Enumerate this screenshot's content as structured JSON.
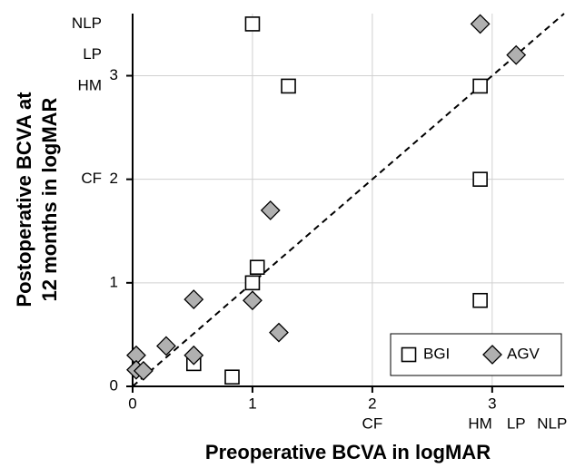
{
  "chart_data": {
    "type": "scatter",
    "x_label": "Preoperative BCVA in logMAR",
    "y_label": [
      "Postoperative BCVA at",
      "12 months in logMAR"
    ],
    "xlim": [
      0,
      3.6
    ],
    "ylim": [
      0,
      3.6
    ],
    "xticks": [
      0,
      1,
      2,
      3
    ],
    "yticks": [
      0,
      1,
      2,
      3
    ],
    "x_annotations": [
      {
        "value": 2,
        "label": "CF"
      },
      {
        "value": 2.9,
        "label": "HM"
      },
      {
        "value": 3.2,
        "label": "LP"
      },
      {
        "value": 3.5,
        "label": "NLP"
      }
    ],
    "y_annotations": [
      {
        "value": 2,
        "label": "CF"
      },
      {
        "value": 2.9,
        "label": "HM"
      },
      {
        "value": 3.2,
        "label": "LP"
      },
      {
        "value": 3.5,
        "label": "NLP"
      }
    ],
    "grid": true,
    "legend": "lower right",
    "series": [
      {
        "name": "BGI",
        "marker": "square",
        "color": "#ffffff",
        "x": [
          1.0,
          1.3,
          2.9,
          2.9,
          2.9,
          1.04,
          1.0,
          0.51,
          0.83
        ],
        "values": [
          3.5,
          2.9,
          2.9,
          2.0,
          0.83,
          1.15,
          1.0,
          0.22,
          0.09
        ]
      },
      {
        "name": "AGV",
        "marker": "diamond",
        "color": "#b0b0b0",
        "x": [
          2.9,
          3.2,
          1.15,
          0.51,
          1.0,
          1.22,
          0.28,
          0.51,
          0.03,
          0.03,
          0.09
        ],
        "values": [
          3.5,
          3.2,
          1.7,
          0.84,
          0.83,
          0.52,
          0.39,
          0.3,
          0.3,
          0.16,
          0.15
        ]
      }
    ]
  }
}
